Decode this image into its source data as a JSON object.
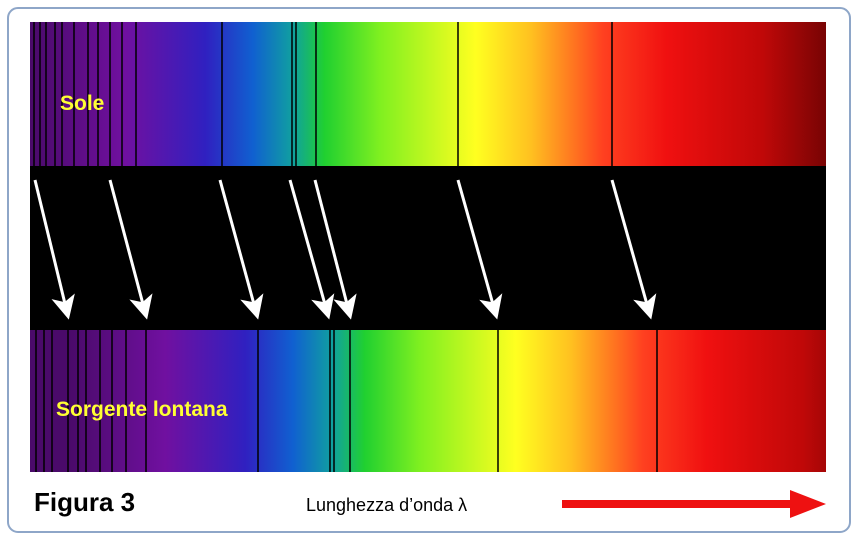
{
  "spectra": {
    "top_label": "Sole",
    "bottom_label": "Sorgente lontana"
  },
  "caption": {
    "figure": "Figura 3",
    "axis": "Lunghezza d’onda λ"
  }
}
